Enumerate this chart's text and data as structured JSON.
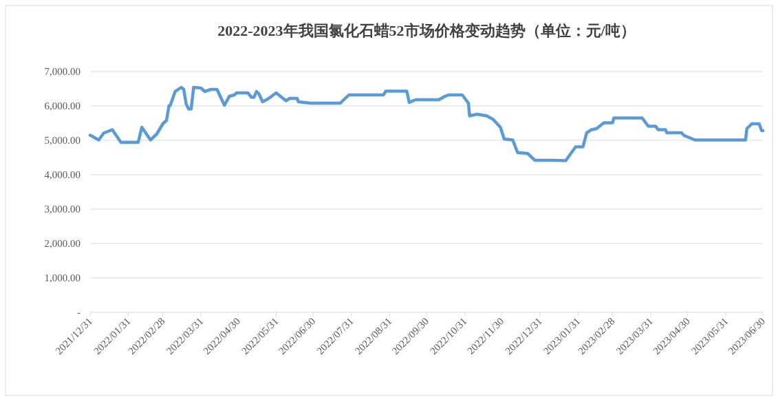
{
  "chart_data": {
    "type": "line",
    "title": "2022-2023年我国氯化石蜡52市场价格变动趋势（单位：元/吨）",
    "x": [
      "2021-12-31",
      "2022-01-07",
      "2022-01-11",
      "2022-01-16",
      "2022-01-18",
      "2022-01-25",
      "2022-02-08",
      "2022-02-11",
      "2022-02-18",
      "2022-02-23",
      "2022-02-28",
      "2022-03-03",
      "2022-03-05",
      "2022-03-06",
      "2022-03-10",
      "2022-03-15",
      "2022-03-17",
      "2022-03-19",
      "2022-03-21",
      "2022-03-23",
      "2022-03-25",
      "2022-03-31",
      "2022-04-03",
      "2022-04-08",
      "2022-04-13",
      "2022-04-19",
      "2022-04-23",
      "2022-04-27",
      "2022-04-29",
      "2022-05-08",
      "2022-05-11",
      "2022-05-13",
      "2022-05-15",
      "2022-05-17",
      "2022-05-20",
      "2022-05-25",
      "2022-05-31",
      "2022-06-08",
      "2022-06-11",
      "2022-06-17",
      "2022-06-18",
      "2022-06-28",
      "2022-07-14",
      "2022-07-22",
      "2022-07-29",
      "2022-08-26",
      "2022-08-28",
      "2022-09-14",
      "2022-09-16",
      "2022-09-21",
      "2022-10-10",
      "2022-10-15",
      "2022-10-18",
      "2022-10-29",
      "2022-11-03",
      "2022-11-04",
      "2022-11-10",
      "2022-11-18",
      "2022-11-23",
      "2022-11-29",
      "2022-12-02",
      "2022-12-09",
      "2022-12-13",
      "2022-12-21",
      "2022-12-27",
      "2023-01-09",
      "2023-01-21",
      "2023-01-29",
      "2023-02-04",
      "2023-02-07",
      "2023-02-11",
      "2023-02-15",
      "2023-02-21",
      "2023-02-28",
      "2023-03-01",
      "2023-03-24",
      "2023-03-29",
      "2023-04-04",
      "2023-04-06",
      "2023-04-12",
      "2023-04-13",
      "2023-04-25",
      "2023-04-27",
      "2023-05-06",
      "2023-06-16",
      "2023-06-17",
      "2023-06-21",
      "2023-06-27",
      "2023-06-29",
      "2023-06-30"
    ],
    "series": [
      {
        "color": "#5b9bd5",
        "values": [
          5150,
          5010,
          5210,
          5280,
          5310,
          4940,
          4940,
          5380,
          5010,
          5180,
          5480,
          5580,
          6010,
          6010,
          6420,
          6540,
          6480,
          6050,
          5910,
          5910,
          6540,
          6520,
          6420,
          6480,
          6480,
          6020,
          6280,
          6320,
          6380,
          6380,
          6250,
          6250,
          6420,
          6350,
          6120,
          6220,
          6380,
          6150,
          6220,
          6220,
          6120,
          6080,
          6080,
          6080,
          6320,
          6320,
          6430,
          6430,
          6100,
          6180,
          6180,
          6280,
          6320,
          6320,
          6080,
          5710,
          5760,
          5710,
          5610,
          5380,
          5040,
          5010,
          4640,
          4620,
          4420,
          4420,
          4410,
          4810,
          4810,
          5220,
          5310,
          5340,
          5510,
          5510,
          5650,
          5650,
          5410,
          5410,
          5310,
          5310,
          5220,
          5220,
          5140,
          5010,
          5010,
          5340,
          5480,
          5480,
          5280,
          5280
        ]
      }
    ],
    "xlim": [
      "2021-12-31",
      "2023-06-30"
    ],
    "xticks": [
      {
        "value": "2021-12-31",
        "label": "2021/12/31"
      },
      {
        "value": "2022-01-31",
        "label": "2022/01/31"
      },
      {
        "value": "2022-02-28",
        "label": "2022/02/28"
      },
      {
        "value": "2022-03-31",
        "label": "2022/03/31"
      },
      {
        "value": "2022-04-30",
        "label": "2022/04/30"
      },
      {
        "value": "2022-05-31",
        "label": "2022/05/31"
      },
      {
        "value": "2022-06-30",
        "label": "2022/06/30"
      },
      {
        "value": "2022-07-31",
        "label": "2022/07/31"
      },
      {
        "value": "2022-08-31",
        "label": "2022/08/31"
      },
      {
        "value": "2022-09-30",
        "label": "2022/09/30"
      },
      {
        "value": "2022-10-31",
        "label": "2022/10/31"
      },
      {
        "value": "2022-11-30",
        "label": "2022/11/30"
      },
      {
        "value": "2022-12-31",
        "label": "2022/12/31"
      },
      {
        "value": "2023-01-31",
        "label": "2023/01/31"
      },
      {
        "value": "2023-02-28",
        "label": "2023/02/28"
      },
      {
        "value": "2023-03-31",
        "label": "2023/03/31"
      },
      {
        "value": "2023-04-30",
        "label": "2023/04/30"
      },
      {
        "value": "2023-05-31",
        "label": "2023/05/31"
      },
      {
        "value": "2023-06-30",
        "label": "2023/06/30"
      }
    ],
    "ylim": [
      0,
      7000
    ],
    "yticks": [
      {
        "value": 0,
        "label": "-"
      },
      {
        "value": 1000,
        "label": "1,000.00"
      },
      {
        "value": 2000,
        "label": "2,000.00"
      },
      {
        "value": 3000,
        "label": "3,000.00"
      },
      {
        "value": 4000,
        "label": "4,000.00"
      },
      {
        "value": 5000,
        "label": "5,000.00"
      },
      {
        "value": 6000,
        "label": "6,000.00"
      },
      {
        "value": 7000,
        "label": "7,000.00"
      }
    ],
    "grid": "y",
    "marker": "none",
    "line_style": "solid"
  }
}
